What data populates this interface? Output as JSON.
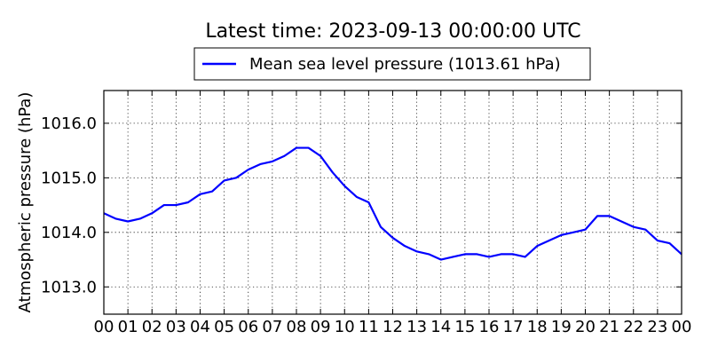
{
  "chart_data": {
    "type": "line",
    "title": "Latest time: 2023-09-13 00:00:00 UTC",
    "xlabel": "",
    "ylabel": "Atmospheric pressure (hPa)",
    "xlim": [
      0,
      24
    ],
    "ylim": [
      1012.5,
      1016.6
    ],
    "x_tick_labels": [
      "00",
      "01",
      "02",
      "03",
      "04",
      "05",
      "06",
      "07",
      "08",
      "09",
      "10",
      "11",
      "12",
      "13",
      "14",
      "15",
      "16",
      "17",
      "18",
      "19",
      "20",
      "21",
      "22",
      "23",
      "00"
    ],
    "y_ticks": [
      1013.0,
      1014.0,
      1015.0,
      1016.0
    ],
    "y_tick_labels": [
      "1013.0",
      "1014.0",
      "1015.0",
      "1016.0"
    ],
    "grid": true,
    "legend_position": "top-center",
    "series": [
      {
        "name": "Mean sea level pressure (1013.61 hPa)",
        "color": "#0000ff",
        "x": [
          0,
          0.5,
          1,
          1.5,
          2,
          2.5,
          3,
          3.5,
          4,
          4.5,
          5,
          5.5,
          6,
          6.5,
          7,
          7.5,
          8,
          8.5,
          9,
          9.5,
          10,
          10.5,
          11,
          11.5,
          12,
          12.5,
          13,
          13.5,
          14,
          14.5,
          15,
          15.5,
          16,
          16.5,
          17,
          17.5,
          18,
          18.5,
          19,
          19.5,
          20,
          20.5,
          21,
          21.5,
          22,
          22.5,
          23,
          23.5,
          24
        ],
        "y": [
          1014.35,
          1014.25,
          1014.2,
          1014.25,
          1014.35,
          1014.5,
          1014.5,
          1014.55,
          1014.7,
          1014.75,
          1014.95,
          1015.0,
          1015.15,
          1015.25,
          1015.3,
          1015.4,
          1015.55,
          1015.55,
          1015.4,
          1015.1,
          1014.85,
          1014.65,
          1014.55,
          1014.1,
          1013.9,
          1013.75,
          1013.65,
          1013.6,
          1013.5,
          1013.55,
          1013.6,
          1013.6,
          1013.55,
          1013.6,
          1013.6,
          1013.55,
          1013.75,
          1013.85,
          1013.95,
          1014.0,
          1014.05,
          1014.3,
          1014.3,
          1014.2,
          1014.1,
          1014.05,
          1013.85,
          1013.8,
          1013.6
        ]
      }
    ]
  }
}
